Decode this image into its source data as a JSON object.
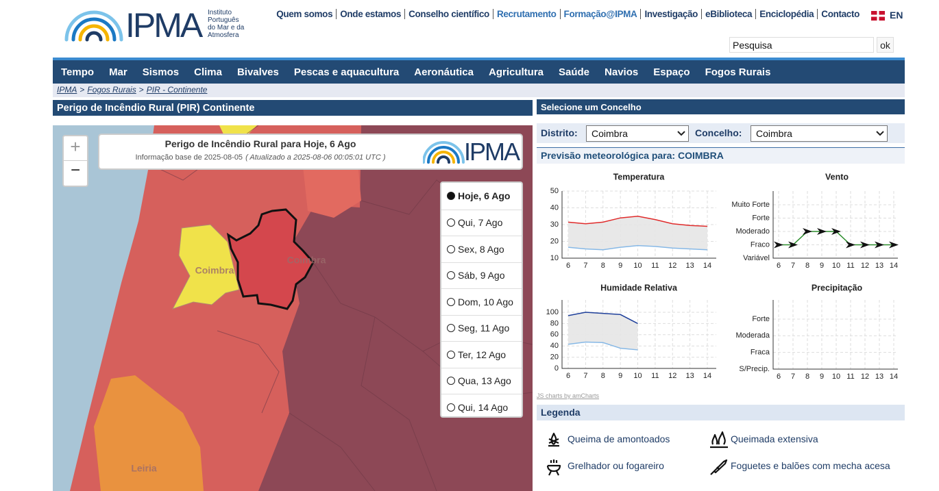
{
  "header": {
    "logo": "IPMA",
    "institute": [
      "Instituto",
      "Português",
      "do Mar e da",
      "Atmosfera"
    ],
    "links": [
      "Quem somos",
      "Onde estamos",
      "Conselho científico",
      "Recrutamento",
      "Formação@IPMA",
      "Investigação",
      "eBiblioteca",
      "Enciclopédia",
      "Contacto"
    ],
    "language": "EN",
    "search_placeholder": "Pesquisa",
    "search_button": "ok"
  },
  "nav": [
    "Tempo",
    "Mar",
    "Sismos",
    "Clima",
    "Bivalves",
    "Pescas e aquacultura",
    "Aeronáutica",
    "Agricultura",
    "Saúde",
    "Navios",
    "Espaço",
    "Fogos Rurais"
  ],
  "breadcrumb": {
    "items": [
      "IPMA",
      "Fogos Rurais",
      "PIR - Continente"
    ],
    "separator": ">"
  },
  "map_panel": {
    "title": "Perigo de Incêndio Rural (PIR) Continente",
    "zoom_in": "+",
    "zoom_out": "−",
    "popup": {
      "title": "Perigo de Incêndio Rural para Hoje, 6 Ago",
      "info": "Informação base de 2025-08-05",
      "updated": "( Atualizado a 2025-08-06 00:05:01 UTC )"
    },
    "days": [
      "Hoje, 6 Ago",
      "Qui, 7 Ago",
      "Sex, 8 Ago",
      "Sáb, 9 Ago",
      "Dom, 10 Ago",
      "Seg, 11 Ago",
      "Ter, 12 Ago",
      "Qua, 13 Ago",
      "Qui, 14 Ago"
    ],
    "map_labels": [
      "Coimbra",
      "Coimbra",
      "Leiria"
    ]
  },
  "selector": {
    "title": "Selecione um Concelho",
    "district_label": "Distrito:",
    "district": "Coimbra",
    "municipality_label": "Concelho:",
    "municipality": "Coimbra"
  },
  "forecast": {
    "title": "Previsão meteorológica para: COIMBRA",
    "credit": "JS charts by amCharts",
    "charts": [
      {
        "type": "line",
        "title": "Temperatura",
        "x": [
          6,
          7,
          8,
          9,
          10,
          11,
          12,
          13,
          14
        ],
        "ylim": [
          10,
          50
        ],
        "yticks": [
          10,
          20,
          30,
          40,
          50
        ],
        "series": [
          {
            "color": "#e02a2a",
            "values": [
              31.5,
              30.5,
              31.5,
              34,
              35,
              33,
              30.5,
              29.5,
              29
            ]
          },
          {
            "color": "#86b8e6",
            "values": [
              16.5,
              15.5,
              15,
              16.5,
              17.5,
              17,
              16,
              15.5,
              15
            ]
          }
        ]
      },
      {
        "type": "category-line",
        "title": "Vento",
        "x": [
          6,
          7,
          8,
          9,
          10,
          11,
          12,
          13,
          14
        ],
        "levels": [
          "Variável",
          "Fraco",
          "Moderado",
          "Forte",
          "Muito Forte"
        ],
        "color": "#2a8c2a",
        "values": [
          "Fraco",
          "Fraco",
          "Moderado",
          "Moderado",
          "Moderado",
          "Fraco",
          "Fraco",
          "Fraco",
          "Fraco"
        ]
      },
      {
        "type": "line",
        "title": "Humidade Relativa",
        "x": [
          6,
          7,
          8,
          9,
          10,
          11,
          12,
          13,
          14
        ],
        "ylim": [
          0,
          100
        ],
        "yticks": [
          0,
          20,
          40,
          60,
          80,
          100
        ],
        "series": [
          {
            "color": "#1e3f9a",
            "values": [
              94,
              100,
              98,
              96,
              80,
              null,
              null,
              null,
              null
            ]
          },
          {
            "color": "#86b8e6",
            "values": [
              43,
              47,
              46,
              36,
              33,
              null,
              null,
              null,
              null
            ]
          }
        ]
      },
      {
        "type": "category-line",
        "title": "Precipitação",
        "x": [
          6,
          7,
          8,
          9,
          10,
          11,
          12,
          13,
          14
        ],
        "levels": [
          "S/Precip.",
          "Fraca",
          "Moderada",
          "Forte"
        ],
        "color": "#2a8c2a",
        "values": []
      }
    ]
  },
  "legend": {
    "title": "Legenda",
    "items": [
      "Queima de amontoados",
      "Queimada extensiva",
      "Grelhador ou fogareiro",
      "Foguetes e balões com mecha acesa"
    ]
  }
}
